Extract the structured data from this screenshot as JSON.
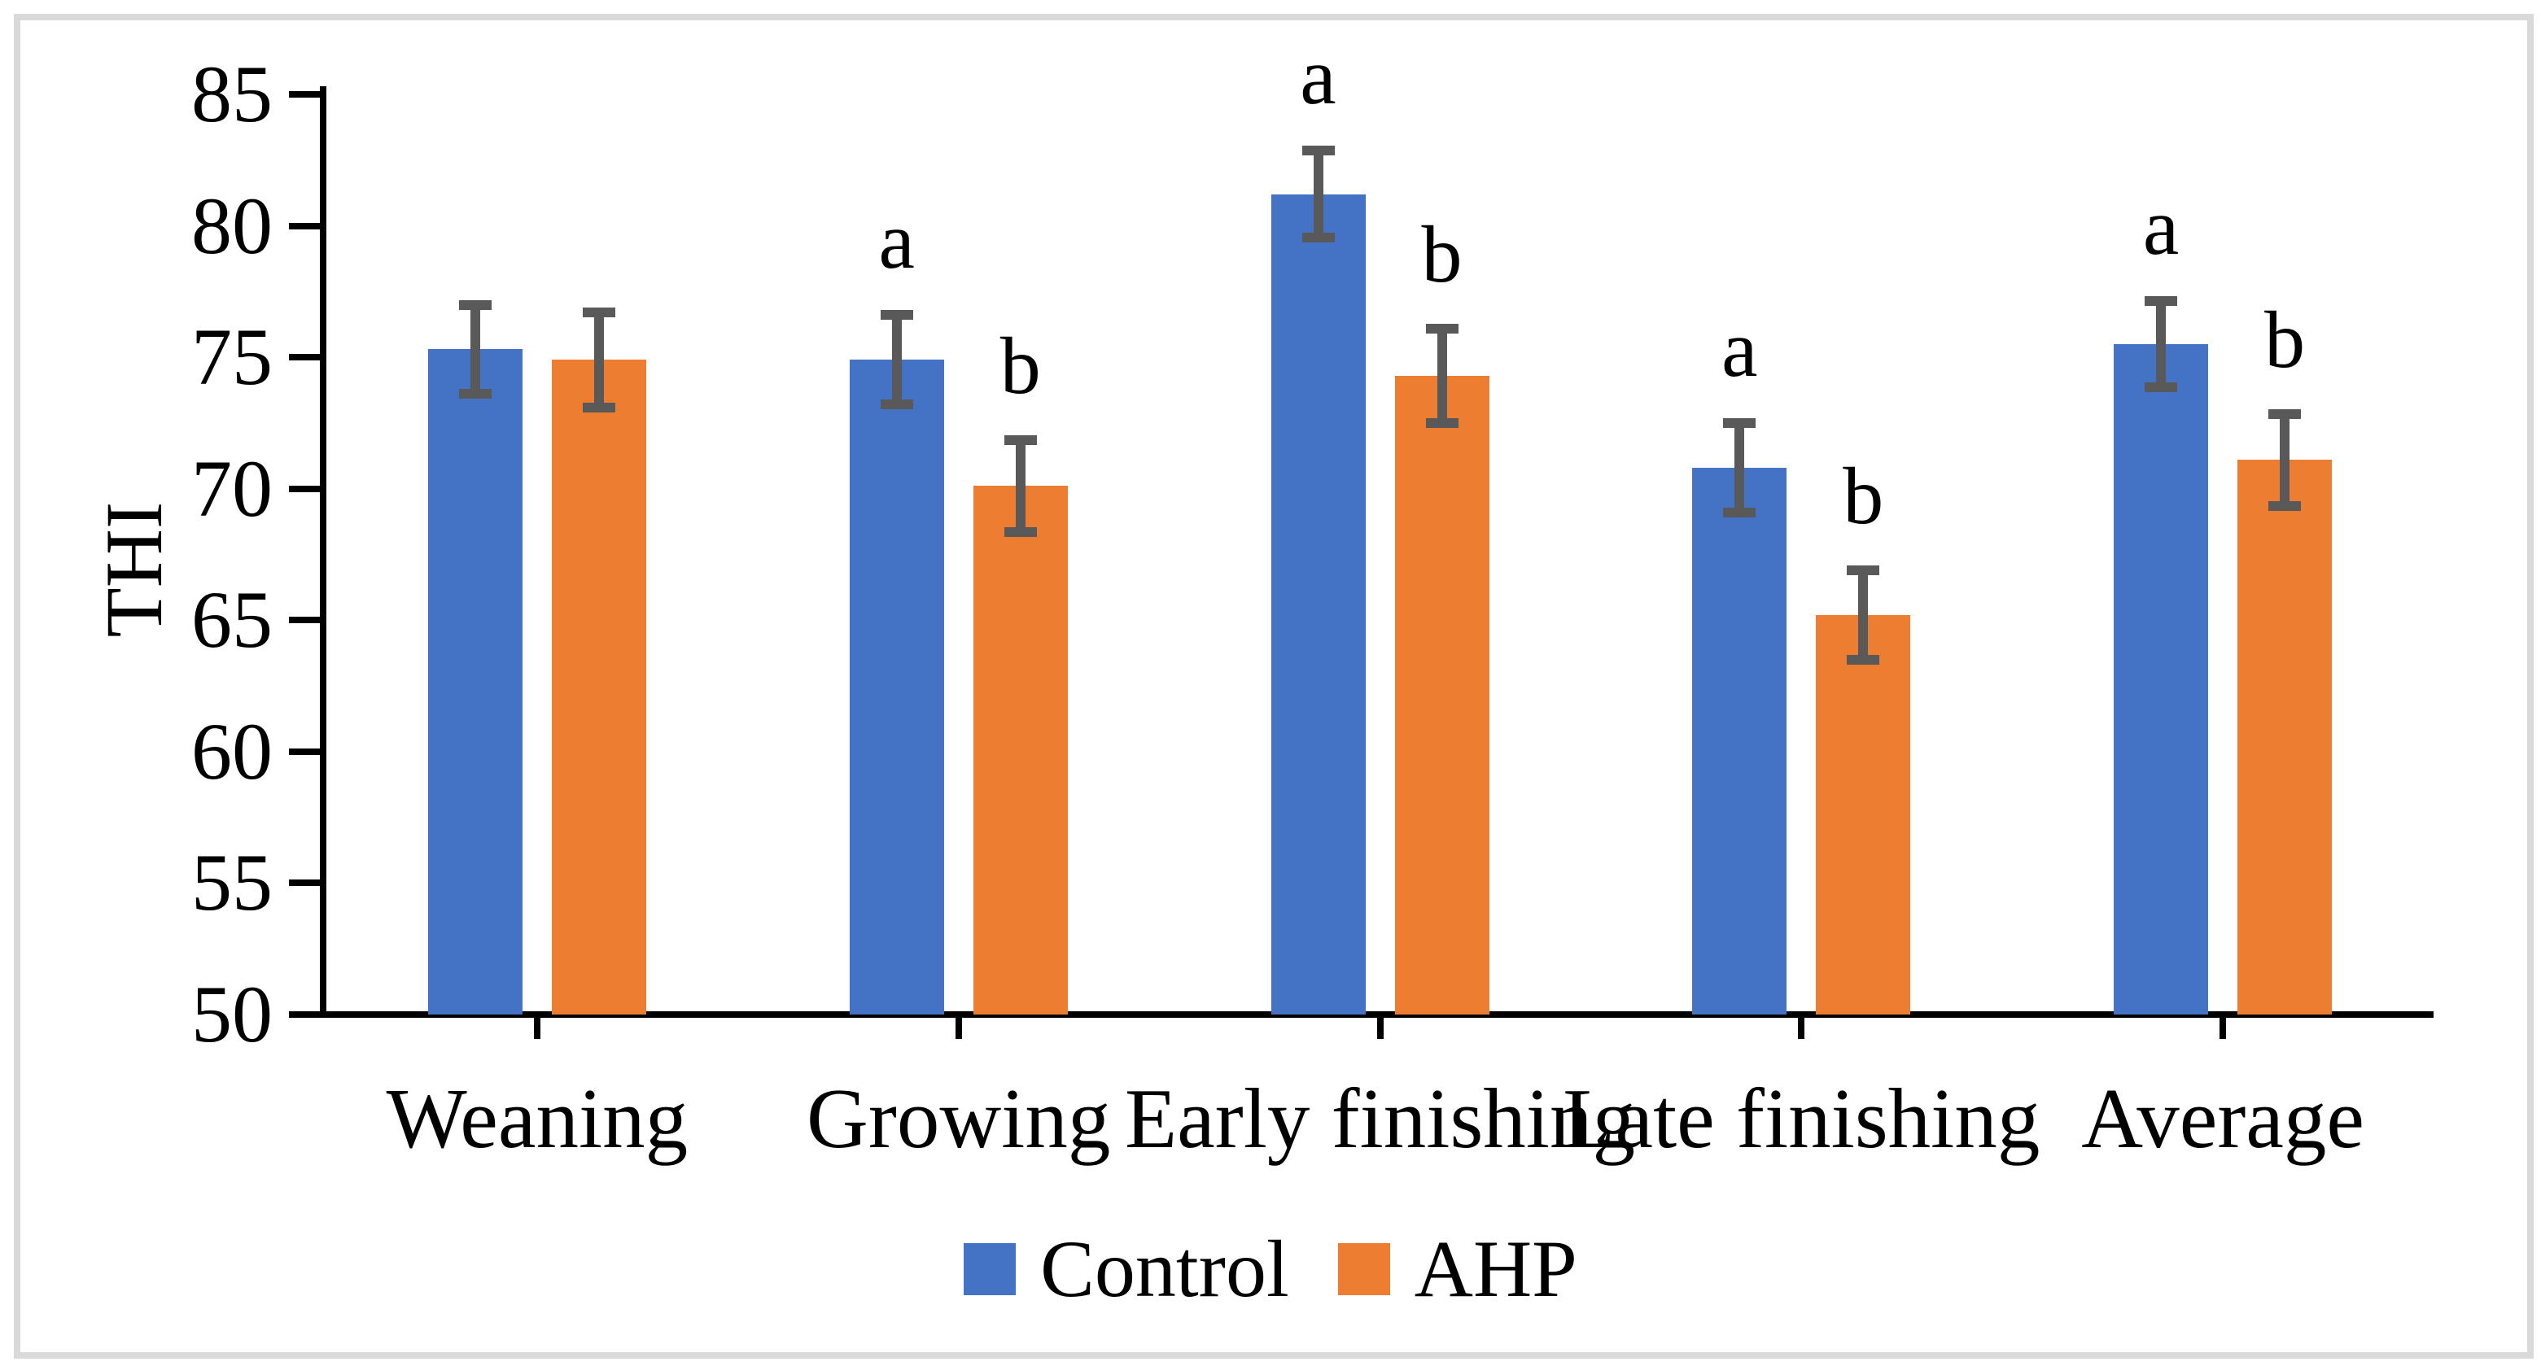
{
  "chart_data": {
    "type": "bar",
    "title": "",
    "ylabel": "THI",
    "xlabel": "",
    "ylim": [
      50,
      85
    ],
    "yticks": [
      50,
      55,
      60,
      65,
      70,
      75,
      80,
      85
    ],
    "grid": false,
    "legend_position": "bottom",
    "categories": [
      "Weaning",
      "Growing",
      "Early finishing",
      "Late finishing",
      "Average"
    ],
    "series": [
      {
        "name": "Control",
        "color": "#4472C4",
        "values": [
          75.3,
          74.9,
          81.2,
          70.8,
          75.5
        ],
        "errors": [
          1.7,
          1.7,
          1.65,
          1.7,
          1.65
        ],
        "letters": [
          "",
          "a",
          "a",
          "a",
          "a"
        ]
      },
      {
        "name": "AHP",
        "color": "#ED7D31",
        "values": [
          74.9,
          70.1,
          74.3,
          65.2,
          71.1
        ],
        "errors": [
          1.8,
          1.75,
          1.8,
          1.7,
          1.75
        ],
        "letters": [
          "",
          "b",
          "b",
          "b",
          "b"
        ]
      }
    ],
    "error_bar_color": "#595959",
    "frame_border_color": "#D9D9D9",
    "axis_color": "#000000"
  }
}
